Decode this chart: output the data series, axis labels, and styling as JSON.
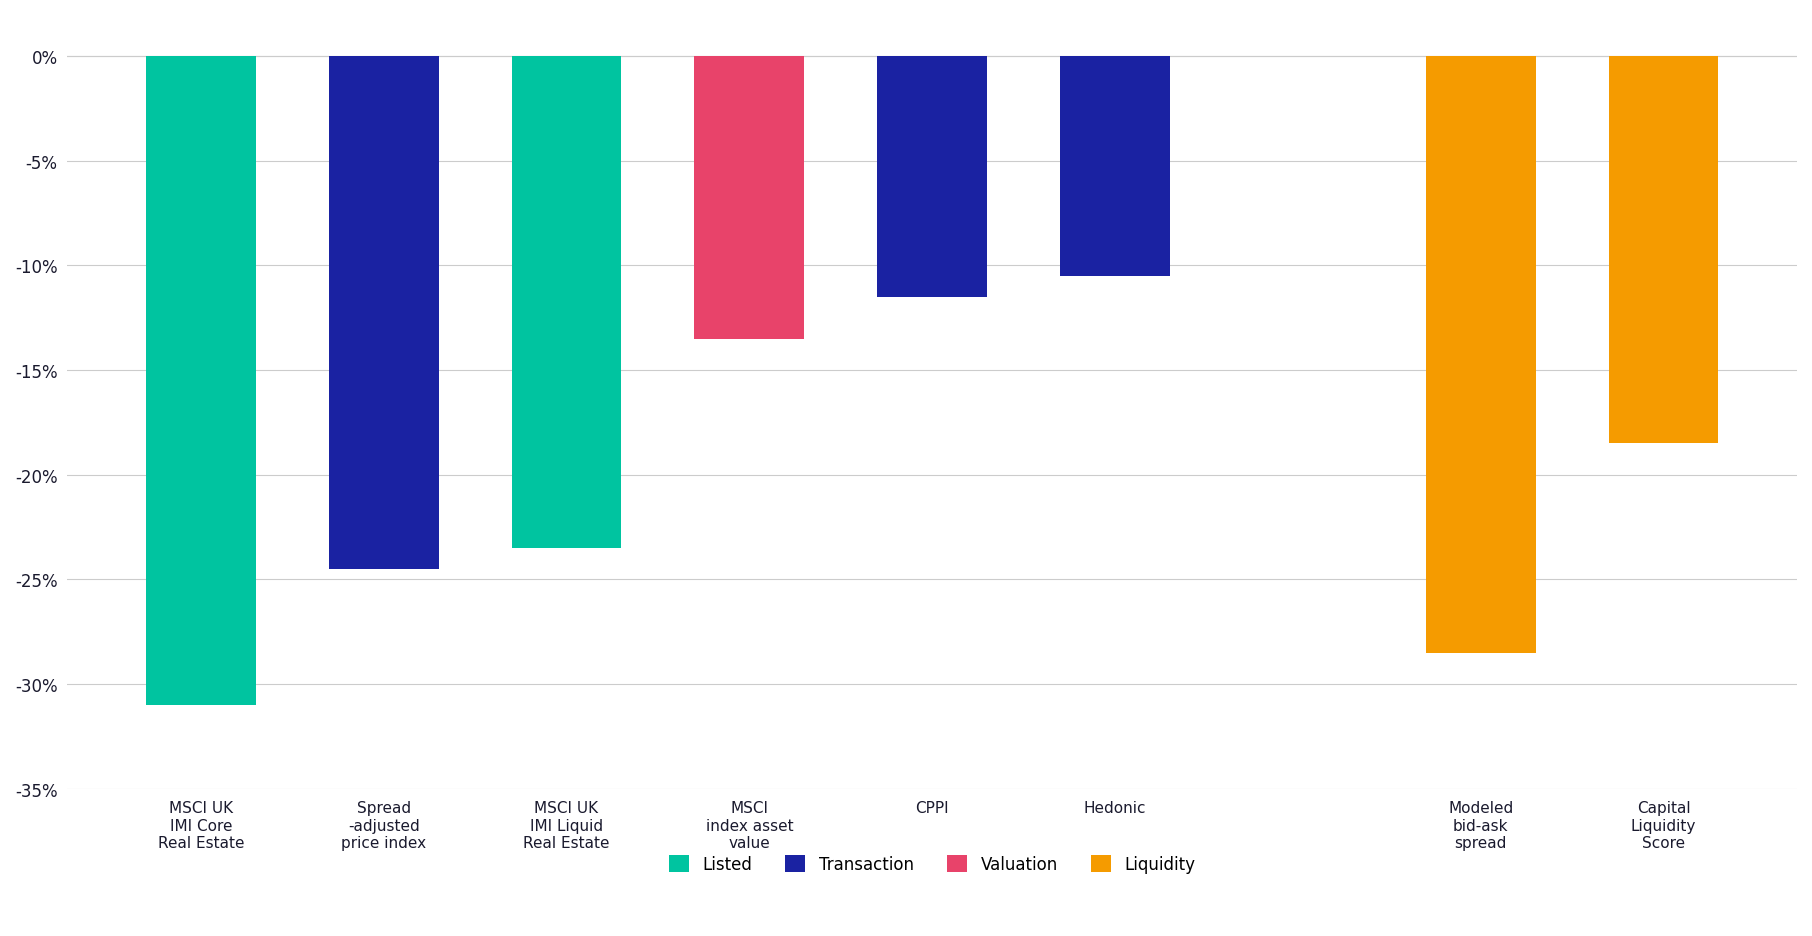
{
  "categories": [
    "MSCI UK\nIMI Core\nReal Estate",
    "Spread\n-adjusted\nprice index",
    "MSCI UK\nIMI Liquid\nReal Estate",
    "MSCI\nindex asset\nvalue",
    "CPPI",
    "Hedonic",
    "",
    "Modeled\nbid-ask\nspread",
    "Capital\nLiquidity\nScore"
  ],
  "values": [
    -31.0,
    -24.5,
    -23.5,
    -13.5,
    -11.5,
    -10.5,
    null,
    -28.5,
    -18.5
  ],
  "colors": [
    "#00C4A0",
    "#1A22A2",
    "#00C4A0",
    "#E8436A",
    "#1A22A2",
    "#1A22A2",
    null,
    "#F59B00",
    "#F59B00"
  ],
  "legend_labels": [
    "Listed",
    "Transaction",
    "Valuation",
    "Liquidity"
  ],
  "legend_colors": [
    "#00C4A0",
    "#1A22A2",
    "#E8436A",
    "#F59B00"
  ],
  "ylim": [
    -35,
    2
  ],
  "yticks": [
    0,
    -5,
    -10,
    -15,
    -20,
    -25,
    -30,
    -35
  ],
  "background_color": "#FFFFFF",
  "grid_color": "#CCCCCC",
  "tick_fontsize": 12,
  "label_fontsize": 11
}
